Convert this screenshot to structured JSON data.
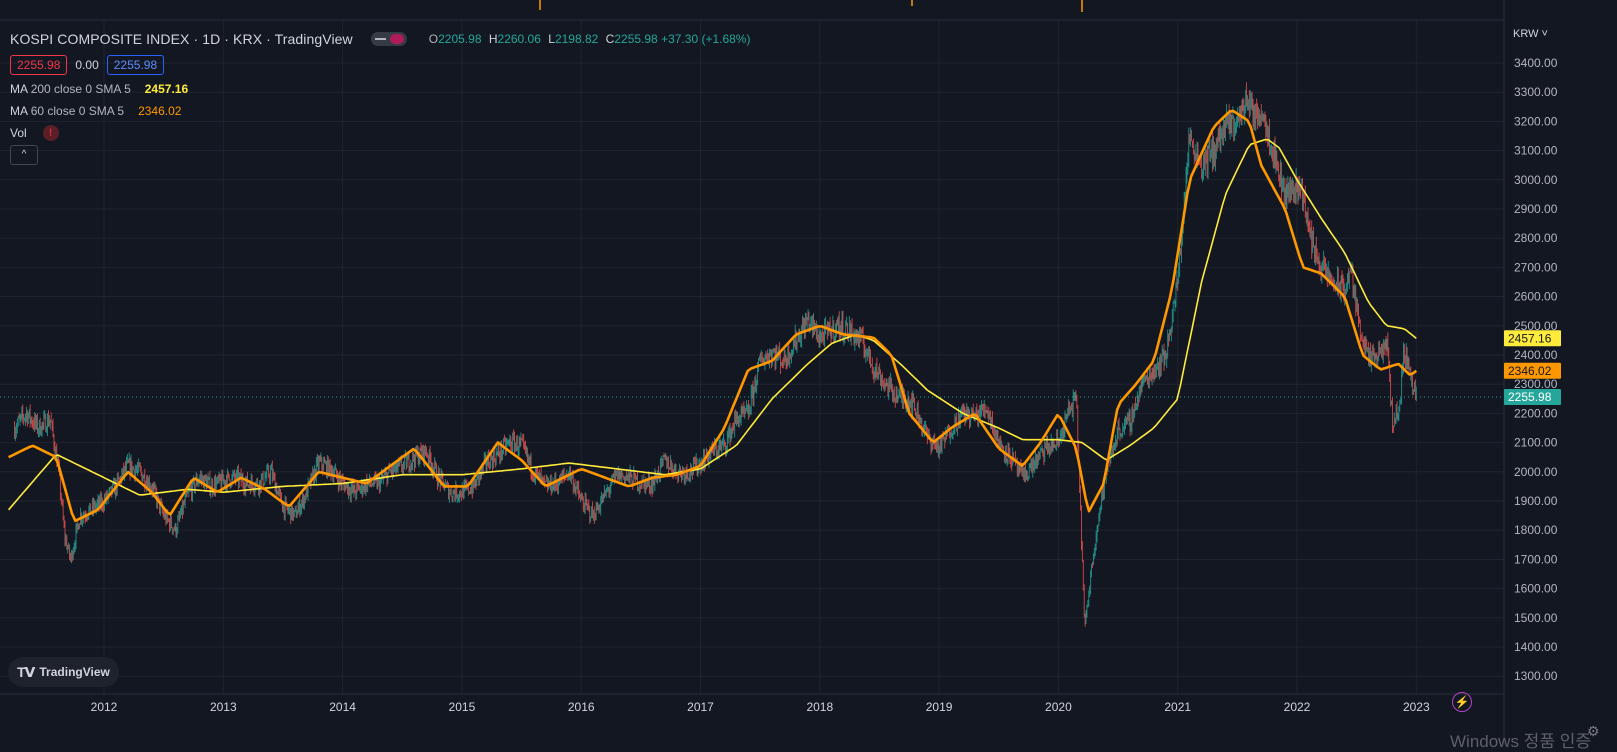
{
  "header": {
    "title": "KOSPI COMPOSITE INDEX · 1D · KRX · TradingView",
    "open_label": "O",
    "open": "2205.98",
    "high_label": "H",
    "high": "2260.06",
    "low_label": "L",
    "low": "2198.82",
    "close_label": "C",
    "close": "2255.98",
    "change": "+37.30 (+1.68%)"
  },
  "price_boxes": {
    "bid": "2255.98",
    "spread": "0.00",
    "ask": "2255.98"
  },
  "indicators": [
    {
      "prefix": "MA",
      "params": "200 close 0 SMA 5",
      "value": "2457.16",
      "color": "#ffeb3b"
    },
    {
      "prefix": "MA",
      "params": "60 close 0 SMA 5",
      "value": "2346.02",
      "color": "#ff9800"
    },
    {
      "prefix": "Vol",
      "params": "",
      "value": "",
      "error_icon": "!"
    }
  ],
  "collapse_icon": "^",
  "currency": "KRW",
  "logo_text": "TradingView",
  "watermark": "Windows 정품 인증",
  "colors": {
    "bg": "#131722",
    "up": "#26a69a",
    "down": "#ef5350",
    "ma200": "#ffeb3b",
    "ma60": "#ff9800",
    "grid": "#2a2e39"
  },
  "chart_data": {
    "type": "line",
    "title": "KOSPI COMPOSITE INDEX · 1D · KRX · TradingView",
    "xlabel": "",
    "ylabel": "",
    "ylim": [
      1300,
      3450
    ],
    "xlim": [
      2011.2,
      2023.32
    ],
    "grid": true,
    "legend": "top-left",
    "x_ticks": [
      2012,
      2013,
      2014,
      2015,
      2016,
      2017,
      2018,
      2019,
      2020,
      2021,
      2022,
      2023
    ],
    "y_ticks": [
      1300,
      1400,
      1500,
      1600,
      1700,
      1800,
      1900,
      2000,
      2100,
      2200,
      2300,
      2400,
      2500,
      2600,
      2700,
      2800,
      2900,
      3000,
      3100,
      3200,
      3300,
      3400
    ],
    "price_labels": [
      {
        "value": 2457.16,
        "text": "2457.16",
        "color": "#ffeb3b"
      },
      {
        "value": 2346.02,
        "text": "2346.02",
        "color": "#ff9800"
      },
      {
        "value": 2255.98,
        "text": "2255.98",
        "color": "#26a69a"
      }
    ],
    "current_price_line": 2255.98,
    "series": [
      {
        "name": "Price",
        "role": "price",
        "x": [
          2011.25,
          2011.35,
          2011.45,
          2011.55,
          2011.62,
          2011.67,
          2011.72,
          2011.8,
          2011.9,
          2012.0,
          2012.1,
          2012.2,
          2012.3,
          2012.4,
          2012.5,
          2012.6,
          2012.7,
          2012.8,
          2012.9,
          2013.0,
          2013.1,
          2013.2,
          2013.3,
          2013.4,
          2013.5,
          2013.6,
          2013.7,
          2013.8,
          2013.9,
          2014.0,
          2014.1,
          2014.2,
          2014.3,
          2014.4,
          2014.5,
          2014.6,
          2014.7,
          2014.8,
          2014.9,
          2015.0,
          2015.1,
          2015.2,
          2015.3,
          2015.4,
          2015.5,
          2015.6,
          2015.7,
          2015.8,
          2015.9,
          2016.0,
          2016.1,
          2016.2,
          2016.3,
          2016.4,
          2016.5,
          2016.6,
          2016.7,
          2016.8,
          2016.9,
          2017.0,
          2017.1,
          2017.2,
          2017.3,
          2017.4,
          2017.5,
          2017.6,
          2017.7,
          2017.8,
          2017.9,
          2018.0,
          2018.08,
          2018.15,
          2018.25,
          2018.35,
          2018.45,
          2018.55,
          2018.65,
          2018.75,
          2018.82,
          2018.9,
          2019.0,
          2019.1,
          2019.2,
          2019.3,
          2019.4,
          2019.5,
          2019.6,
          2019.7,
          2019.8,
          2019.9,
          2020.0,
          2020.08,
          2020.15,
          2020.2,
          2020.22,
          2020.3,
          2020.4,
          2020.5,
          2020.6,
          2020.7,
          2020.8,
          2020.9,
          2021.0,
          2021.05,
          2021.1,
          2021.2,
          2021.3,
          2021.4,
          2021.5,
          2021.55,
          2021.6,
          2021.65,
          2021.7,
          2021.8,
          2021.9,
          2022.0,
          2022.05,
          2022.1,
          2022.2,
          2022.3,
          2022.4,
          2022.45,
          2022.5,
          2022.6,
          2022.7,
          2022.75,
          2022.8,
          2022.85,
          2022.9,
          2023.0
        ],
        "values": [
          2150,
          2200,
          2150,
          2180,
          2000,
          1780,
          1700,
          1850,
          1870,
          1900,
          1950,
          2020,
          2000,
          1950,
          1850,
          1800,
          1920,
          1980,
          1950,
          1970,
          1980,
          1960,
          1960,
          2000,
          1880,
          1850,
          1930,
          2030,
          2010,
          1960,
          1930,
          1960,
          1960,
          2000,
          2020,
          2050,
          2070,
          1980,
          1930,
          1930,
          1950,
          2030,
          2060,
          2100,
          2090,
          2000,
          1950,
          1960,
          2000,
          1900,
          1850,
          1920,
          1990,
          1980,
          1960,
          1960,
          2040,
          2000,
          2000,
          2030,
          2070,
          2090,
          2180,
          2200,
          2380,
          2410,
          2380,
          2450,
          2520,
          2460,
          2480,
          2500,
          2480,
          2450,
          2360,
          2300,
          2260,
          2250,
          2200,
          2120,
          2080,
          2150,
          2200,
          2190,
          2220,
          2100,
          2050,
          1980,
          2030,
          2080,
          2100,
          2200,
          2250,
          1700,
          1457,
          1750,
          2000,
          2140,
          2170,
          2300,
          2350,
          2400,
          2650,
          2900,
          3150,
          3050,
          3100,
          3180,
          3200,
          3250,
          3280,
          3200,
          3250,
          3100,
          2950,
          2980,
          2960,
          2820,
          2700,
          2650,
          2620,
          2700,
          2550,
          2380,
          2400,
          2450,
          2180,
          2200,
          2420,
          2256
        ]
      },
      {
        "name": "MA 200 close 0 SMA 5",
        "role": "ma200",
        "x": [
          2011.2,
          2011.6,
          2011.9,
          2012.3,
          2012.7,
          2013.0,
          2013.5,
          2014.0,
          2014.5,
          2015.0,
          2015.5,
          2015.9,
          2016.3,
          2016.7,
          2017.0,
          2017.3,
          2017.6,
          2017.9,
          2018.1,
          2018.3,
          2018.45,
          2018.7,
          2018.9,
          2019.2,
          2019.5,
          2019.7,
          2020.0,
          2020.2,
          2020.4,
          2020.6,
          2020.8,
          2021.0,
          2021.2,
          2021.4,
          2021.6,
          2021.75,
          2021.85,
          2022.0,
          2022.2,
          2022.4,
          2022.6,
          2022.75,
          2022.9,
          2023.0
        ],
        "values": [
          1870,
          2060,
          2000,
          1920,
          1940,
          1930,
          1950,
          1960,
          1990,
          1990,
          2010,
          2030,
          2010,
          1990,
          2010,
          2090,
          2250,
          2370,
          2440,
          2470,
          2450,
          2360,
          2280,
          2200,
          2150,
          2110,
          2110,
          2100,
          2040,
          2090,
          2150,
          2250,
          2650,
          2950,
          3120,
          3140,
          3110,
          3000,
          2870,
          2750,
          2580,
          2500,
          2490,
          2457
        ]
      },
      {
        "name": "MA 60 close 0 SMA 5",
        "role": "ma60",
        "x": [
          2011.2,
          2011.4,
          2011.6,
          2011.75,
          2011.95,
          2012.2,
          2012.4,
          2012.55,
          2012.75,
          2012.95,
          2013.15,
          2013.35,
          2013.55,
          2013.8,
          2014.0,
          2014.2,
          2014.4,
          2014.6,
          2014.85,
          2015.05,
          2015.3,
          2015.5,
          2015.7,
          2016.0,
          2016.2,
          2016.4,
          2016.6,
          2016.8,
          2017.0,
          2017.2,
          2017.4,
          2017.6,
          2017.8,
          2018.0,
          2018.2,
          2018.45,
          2018.6,
          2018.75,
          2018.95,
          2019.1,
          2019.3,
          2019.5,
          2019.7,
          2019.85,
          2020.0,
          2020.15,
          2020.25,
          2020.38,
          2020.5,
          2020.65,
          2020.8,
          2020.95,
          2021.1,
          2021.3,
          2021.45,
          2021.6,
          2021.7,
          2021.9,
          2022.05,
          2022.2,
          2022.4,
          2022.55,
          2022.7,
          2022.85,
          2022.95,
          2023.0
        ],
        "values": [
          2050,
          2090,
          2050,
          1830,
          1870,
          2000,
          1930,
          1850,
          1980,
          1930,
          1980,
          1940,
          1880,
          2000,
          1980,
          1960,
          2020,
          2080,
          1950,
          1950,
          2100,
          2040,
          1950,
          2010,
          1980,
          1950,
          1980,
          1990,
          2020,
          2150,
          2350,
          2380,
          2470,
          2500,
          2470,
          2460,
          2400,
          2200,
          2100,
          2150,
          2200,
          2080,
          2020,
          2100,
          2200,
          2080,
          1860,
          1960,
          2230,
          2300,
          2380,
          2620,
          3000,
          3180,
          3240,
          3200,
          3050,
          2900,
          2700,
          2680,
          2600,
          2400,
          2350,
          2370,
          2330,
          2346
        ]
      }
    ]
  }
}
